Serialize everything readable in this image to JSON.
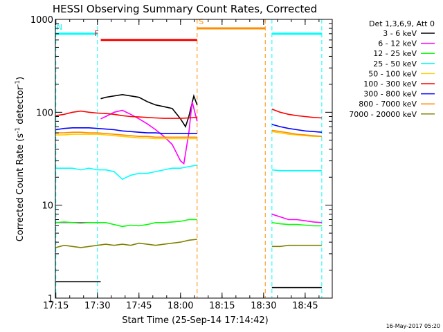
{
  "chart_data": {
    "type": "line",
    "title": "HESSI Observing Summary Count Rates, Corrected",
    "xlabel": "Start Time (25-Sep-14 17:14:42)",
    "ylabel_main": "Corrected Count Rate (s",
    "ylabel_sup1": "-1",
    "ylabel_mid": " detector",
    "ylabel_sup2": "-1",
    "ylabel_end": ")",
    "yscale": "log",
    "ylim": [
      1,
      1000
    ],
    "xlim": [
      17.247,
      18.913
    ],
    "x_units": "hours UT",
    "xticks": [
      {
        "value": 17.25,
        "label": "17:15"
      },
      {
        "value": 17.5,
        "label": "17:30"
      },
      {
        "value": 17.75,
        "label": "17:45"
      },
      {
        "value": 18.0,
        "label": "18:00"
      },
      {
        "value": 18.25,
        "label": "18:15"
      },
      {
        "value": 18.5,
        "label": "18:30"
      },
      {
        "value": 18.75,
        "label": "18:45"
      }
    ],
    "yticks": [
      {
        "value": 1,
        "label": "1"
      },
      {
        "value": 10,
        "label": "10"
      },
      {
        "value": 100,
        "label": "100"
      },
      {
        "value": 1000,
        "label": "1000"
      }
    ],
    "legend_title": "Det 1,3,6,9, Att 0",
    "legend_position": "outside-right",
    "series": [
      {
        "name": "3 - 6 keV",
        "color": "#000000",
        "segments": [
          {
            "x": [
              17.25,
              17.3,
              17.35,
              17.4,
              17.45,
              17.5,
              17.52
            ],
            "y": [
              1.5,
              1.5,
              1.5,
              1.5,
              1.5,
              1.5,
              1.5
            ]
          },
          {
            "x": [
              17.52,
              17.55,
              17.6,
              17.65,
              17.7,
              17.75,
              17.8,
              17.85,
              17.9,
              17.95,
              18.0,
              18.03,
              18.05,
              18.08,
              18.1
            ],
            "y": [
              140,
              145,
              150,
              155,
              150,
              145,
              130,
              120,
              115,
              110,
              85,
              70,
              90,
              150,
              120
            ]
          },
          {
            "x": [
              18.55,
              18.6,
              18.65,
              18.7,
              18.75,
              18.8,
              18.85
            ],
            "y": [
              1.3,
              1.3,
              1.3,
              1.3,
              1.3,
              1.3,
              1.3
            ]
          }
        ]
      },
      {
        "name": "6 - 12 keV",
        "color": "#ff00ff",
        "segments": [
          {
            "x": [
              17.25,
              17.3,
              17.35,
              17.4,
              17.45,
              17.5,
              17.52
            ],
            "y": [
              6.5,
              6.5,
              6.5,
              6.5,
              6.5,
              6.5,
              6.5
            ]
          },
          {
            "x": [
              17.52,
              17.55,
              17.6,
              17.65,
              17.7,
              17.75,
              17.8,
              17.85,
              17.9,
              17.95,
              18.0,
              18.02,
              18.05,
              18.07,
              18.1
            ],
            "y": [
              85,
              90,
              100,
              105,
              95,
              85,
              75,
              65,
              55,
              45,
              30,
              28,
              60,
              130,
              80
            ]
          },
          {
            "x": [
              18.55,
              18.6,
              18.65,
              18.7,
              18.75,
              18.8,
              18.85
            ],
            "y": [
              8,
              7.5,
              7,
              7,
              6.8,
              6.6,
              6.5
            ]
          }
        ]
      },
      {
        "name": "12 - 25 keV",
        "color": "#00ff00",
        "segments": [
          {
            "x": [
              17.25,
              17.3,
              17.35,
              17.4,
              17.45,
              17.5,
              17.55,
              17.6,
              17.65,
              17.7,
              17.75,
              17.8,
              17.85,
              17.9,
              17.95,
              18.0,
              18.05,
              18.1
            ],
            "y": [
              6.5,
              6.6,
              6.5,
              6.4,
              6.5,
              6.5,
              6.5,
              6.2,
              5.9,
              6.1,
              6.0,
              6.2,
              6.5,
              6.5,
              6.6,
              6.7,
              7.0,
              7.0
            ]
          },
          {
            "x": [
              18.55,
              18.6,
              18.65,
              18.7,
              18.75,
              18.8,
              18.85
            ],
            "y": [
              6.5,
              6.3,
              6.2,
              6.2,
              6.1,
              6.0,
              6.0
            ]
          }
        ]
      },
      {
        "name": "25 - 50 keV",
        "color": "#00ffff",
        "segments": [
          {
            "x": [
              17.25,
              17.3,
              17.35,
              17.4,
              17.45,
              17.5,
              17.55,
              17.6,
              17.65,
              17.7,
              17.75,
              17.8,
              17.85,
              17.9,
              17.95,
              18.0,
              18.05,
              18.1
            ],
            "y": [
              25,
              25,
              25,
              24,
              25,
              24,
              24,
              23,
              19,
              21,
              22,
              22,
              23,
              24,
              25,
              25,
              26,
              27
            ]
          },
          {
            "x": [
              18.55,
              18.6,
              18.65,
              18.7,
              18.75,
              18.8,
              18.85
            ],
            "y": [
              24,
              23.5,
              23.5,
              23.5,
              23.5,
              23.5,
              23.5
            ]
          }
        ]
      },
      {
        "name": "50 - 100 keV",
        "color": "#ffcc00",
        "segments": [
          {
            "x": [
              17.25,
              17.3,
              17.35,
              17.4,
              17.45,
              17.5,
              17.55,
              17.6,
              17.65,
              17.7,
              17.75,
              17.8,
              17.85,
              17.9,
              17.95,
              18.0,
              18.05,
              18.1
            ],
            "y": [
              57,
              57,
              58,
              58,
              58,
              58,
              57,
              56,
              55,
              54,
              53,
              53,
              52,
              52,
              52,
              52,
              52,
              52
            ]
          },
          {
            "x": [
              18.55,
              18.6,
              18.65,
              18.7,
              18.75,
              18.8,
              18.85
            ],
            "y": [
              62,
              60,
              58,
              57,
              56,
              55,
              55
            ]
          }
        ]
      },
      {
        "name": "100 - 300 keV",
        "color": "#ff0000",
        "segments": [
          {
            "x": [
              17.25,
              17.3,
              17.35,
              17.4,
              17.45,
              17.5,
              17.55,
              17.6,
              17.65,
              17.7,
              17.75,
              17.8,
              17.85,
              17.9,
              17.95,
              18.0,
              18.05,
              18.1
            ],
            "y": [
              92,
              95,
              100,
              103,
              100,
              98,
              97,
              95,
              92,
              90,
              89,
              88,
              87,
              86,
              86,
              86,
              87,
              88
            ]
          },
          {
            "x": [
              18.55,
              18.6,
              18.65,
              18.7,
              18.75,
              18.8,
              18.85
            ],
            "y": [
              108,
              100,
              95,
              92,
              90,
              88,
              87
            ]
          }
        ]
      },
      {
        "name": "300 - 800 keV",
        "color": "#0000ff",
        "segments": [
          {
            "x": [
              17.25,
              17.3,
              17.35,
              17.4,
              17.45,
              17.5,
              17.55,
              17.6,
              17.65,
              17.7,
              17.75,
              17.8,
              17.85,
              17.9,
              17.95,
              18.0,
              18.05,
              18.1
            ],
            "y": [
              65,
              67,
              68,
              68,
              68,
              67,
              66,
              65,
              63,
              62,
              61,
              60,
              60,
              59,
              59,
              59,
              59,
              59
            ]
          },
          {
            "x": [
              18.55,
              18.6,
              18.65,
              18.7,
              18.75,
              18.8,
              18.85
            ],
            "y": [
              74,
              70,
              67,
              65,
              63,
              62,
              61
            ]
          }
        ]
      },
      {
        "name": "800 - 7000 keV",
        "color": "#ff8c00",
        "segments": [
          {
            "x": [
              17.25,
              17.3,
              17.35,
              17.4,
              17.45,
              17.5,
              17.55,
              17.6,
              17.65,
              17.7,
              17.75,
              17.8,
              17.85,
              17.9,
              17.95,
              18.0,
              18.05,
              18.1
            ],
            "y": [
              60,
              60,
              61,
              61,
              60,
              60,
              59,
              58,
              57,
              56,
              55,
              55,
              54,
              54,
              54,
              54,
              54,
              54
            ]
          },
          {
            "x": [
              18.55,
              18.6,
              18.65,
              18.7,
              18.75,
              18.8,
              18.85
            ],
            "y": [
              64,
              62,
              60,
              58,
              57,
              56,
              55
            ]
          }
        ]
      },
      {
        "name": "7000 - 20000 keV",
        "color": "#808000",
        "segments": [
          {
            "x": [
              17.25,
              17.3,
              17.35,
              17.4,
              17.45,
              17.5,
              17.55,
              17.6,
              17.65,
              17.7,
              17.75,
              17.8,
              17.85,
              17.9,
              17.95,
              18.0,
              18.05,
              18.1
            ],
            "y": [
              3.5,
              3.7,
              3.6,
              3.5,
              3.6,
              3.7,
              3.8,
              3.7,
              3.8,
              3.7,
              3.9,
              3.8,
              3.7,
              3.8,
              3.9,
              4.0,
              4.2,
              4.3
            ]
          },
          {
            "x": [
              18.55,
              18.6,
              18.65,
              18.7,
              18.75,
              18.8,
              18.85
            ],
            "y": [
              3.6,
              3.6,
              3.7,
              3.7,
              3.7,
              3.7,
              3.7
            ]
          }
        ]
      }
    ],
    "flags": [
      {
        "label": "F",
        "color": "#ff0000",
        "y": 600,
        "x": [
          17.52,
          18.1
        ]
      },
      {
        "label": "N",
        "color": "#00ffff",
        "y": 700,
        "x": [
          17.247,
          17.5
        ]
      },
      {
        "label": "S",
        "color": "#ff8c00",
        "y": 800,
        "x": [
          18.1,
          18.51
        ]
      },
      {
        "label": "",
        "color": "#00ffff",
        "y": 700,
        "x": [
          18.55,
          18.85
        ]
      }
    ],
    "vlines": [
      {
        "x": 17.25,
        "color": "#00ffff"
      },
      {
        "x": 17.5,
        "color": "#00ffff"
      },
      {
        "x": 18.1,
        "color": "#ff8c00"
      },
      {
        "x": 18.51,
        "color": "#ff8c00"
      },
      {
        "x": 18.55,
        "color": "#00ffff"
      },
      {
        "x": 18.85,
        "color": "#00ffff"
      }
    ]
  },
  "stamp": "16-May-2017 05:20"
}
